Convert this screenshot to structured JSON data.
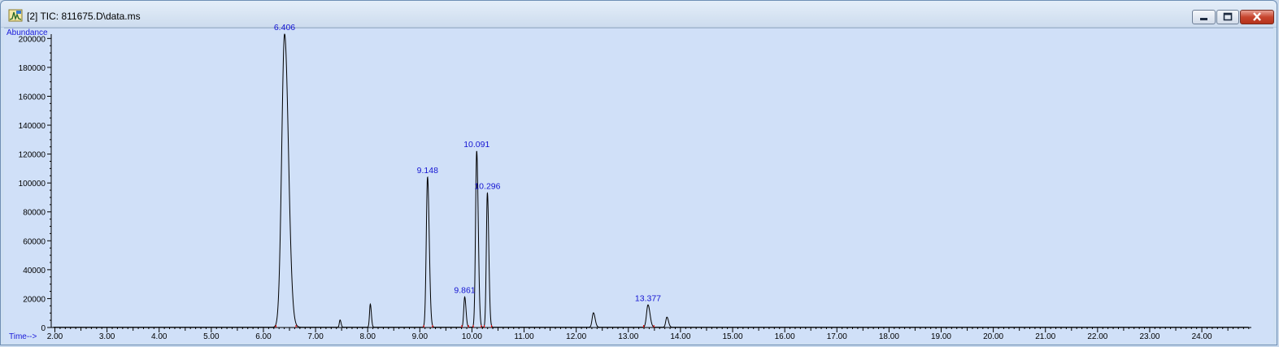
{
  "window": {
    "title": "[2] TIC: 811675.D\\data.ms",
    "icon": "chromatogram-icon"
  },
  "colors": {
    "trace": "#000000",
    "peak_label": "#1414d2",
    "axis_label": "#1a1ad8",
    "baseline_marker": "#e01010",
    "plot_background": "#d0e0f8"
  },
  "chart_data": {
    "type": "line",
    "ylabel": "Abundance",
    "xlabel": "Time-->",
    "xlim": [
      1.93,
      24.95
    ],
    "ylim": [
      0,
      203000
    ],
    "x_ticks": [
      "2.00",
      "3.00",
      "4.00",
      "5.00",
      "6.00",
      "7.00",
      "8.00",
      "9.00",
      "10.00",
      "11.00",
      "12.00",
      "13.00",
      "14.00",
      "15.00",
      "16.00",
      "17.00",
      "18.00",
      "19.00",
      "20.00",
      "21.00",
      "22.00",
      "23.00",
      "24.00"
    ],
    "y_ticks": [
      "0",
      "20000",
      "40000",
      "60000",
      "80000",
      "100000",
      "120000",
      "140000",
      "160000",
      "180000",
      "200000"
    ],
    "peaks": [
      {
        "label": "6.406",
        "time": 6.406,
        "abundance": 203000,
        "halfwidth": 0.055
      },
      {
        "label": "",
        "time": 7.47,
        "abundance": 5000,
        "halfwidth": 0.014
      },
      {
        "label": "",
        "time": 8.05,
        "abundance": 16000,
        "halfwidth": 0.015
      },
      {
        "label": "9.148",
        "time": 9.148,
        "abundance": 104000,
        "halfwidth": 0.024
      },
      {
        "label": "9.861",
        "time": 9.861,
        "abundance": 21000,
        "halfwidth": 0.018
      },
      {
        "label": "10.091",
        "time": 10.091,
        "abundance": 122000,
        "halfwidth": 0.022
      },
      {
        "label": "10.296",
        "time": 10.296,
        "abundance": 93000,
        "halfwidth": 0.02
      },
      {
        "label": "",
        "time": 12.33,
        "abundance": 10000,
        "halfwidth": 0.024
      },
      {
        "label": "13.377",
        "time": 13.377,
        "abundance": 15500,
        "halfwidth": 0.028
      },
      {
        "label": "",
        "time": 13.74,
        "abundance": 7000,
        "halfwidth": 0.022
      }
    ]
  }
}
